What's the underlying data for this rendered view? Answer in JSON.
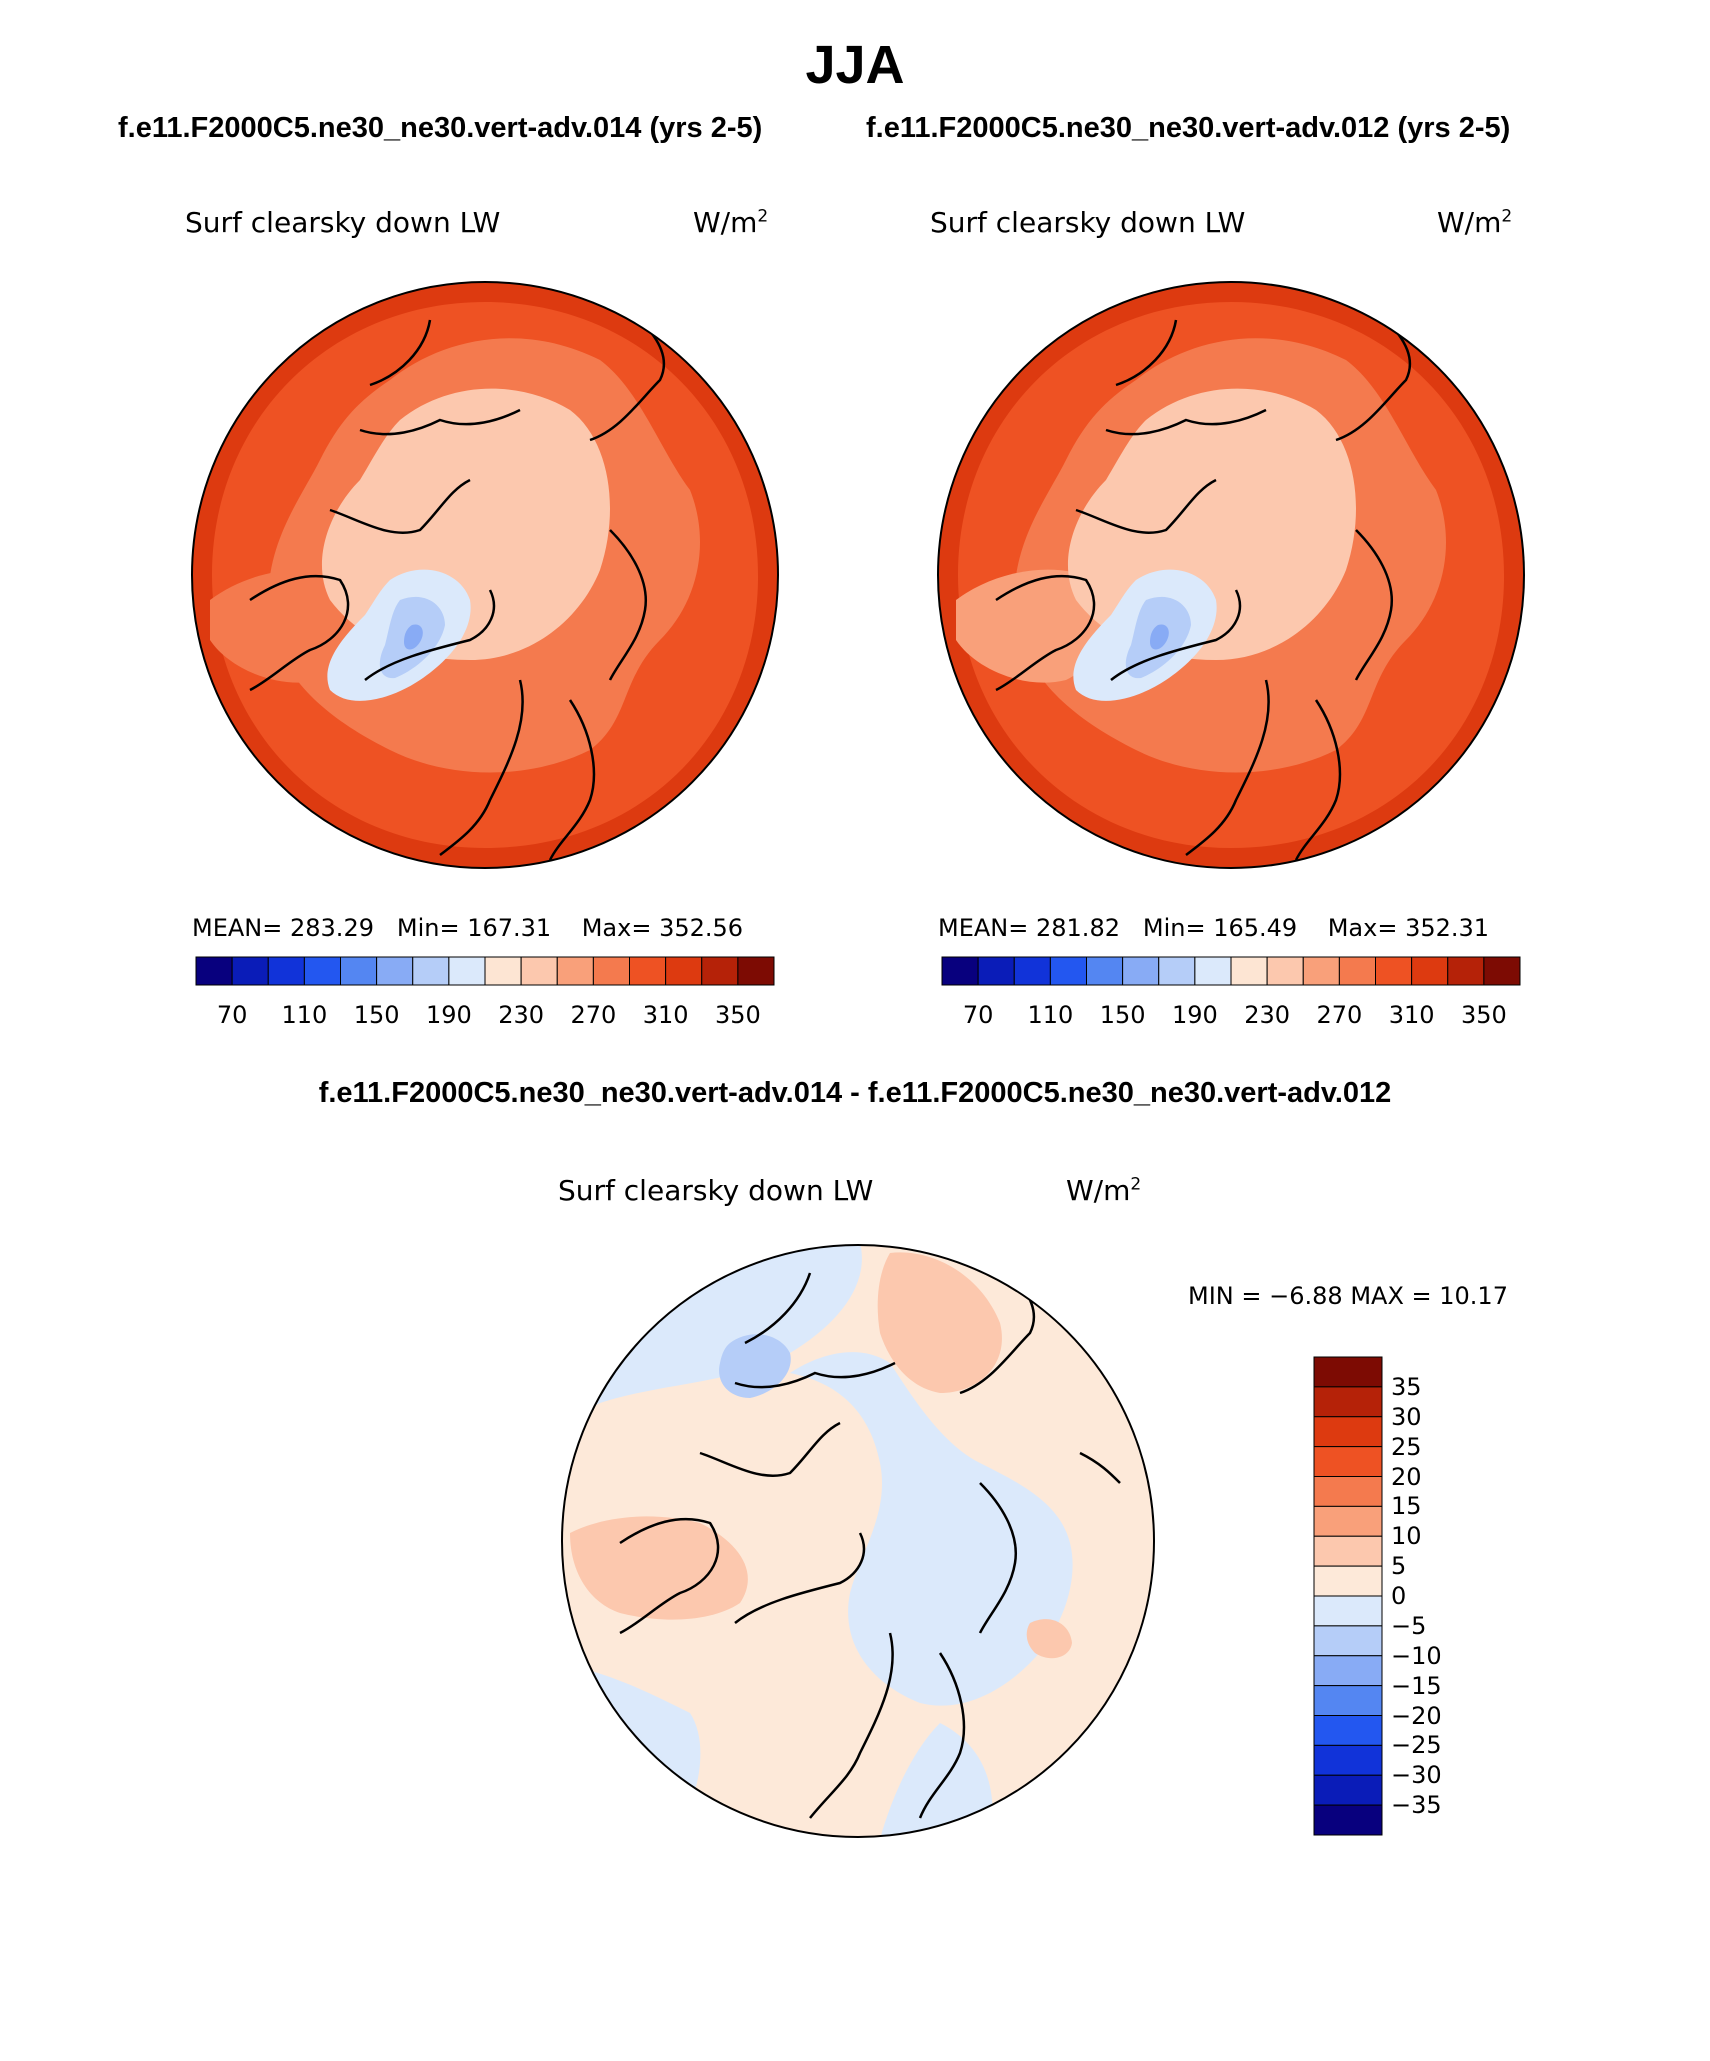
{
  "title": "JJA",
  "panels": [
    {
      "case": "f.e11.F2000C5.ne30_ne30.vert-adv.014 (yrs 2-5)",
      "variable": "Surf clearsky down LW",
      "units_base": "W/m",
      "units_exp": "2",
      "mean_label": "MEAN=",
      "mean": "283.29",
      "min_label": "Min=",
      "min": "167.31",
      "max_label": "Max=",
      "max": "352.56",
      "colorbar_ticks": [
        "70",
        "110",
        "150",
        "190",
        "230",
        "270",
        "310",
        "350"
      ]
    },
    {
      "case": "f.e11.F2000C5.ne30_ne30.vert-adv.012 (yrs 2-5)",
      "variable": "Surf clearsky down LW",
      "units_base": "W/m",
      "units_exp": "2",
      "mean_label": "MEAN=",
      "mean": "281.82",
      "min_label": "Min=",
      "min": "165.49",
      "max_label": "Max=",
      "max": "352.31",
      "colorbar_ticks": [
        "70",
        "110",
        "150",
        "190",
        "230",
        "270",
        "310",
        "350"
      ]
    }
  ],
  "difference": {
    "title": "f.e11.F2000C5.ne30_ne30.vert-adv.014 - f.e11.F2000C5.ne30_ne30.vert-adv.012",
    "variable": "Surf clearsky down LW",
    "units_base": "W/m",
    "units_exp": "2",
    "min_label": "MIN =",
    "min": "−6.88",
    "max_label": "MAX =",
    "max": "10.17",
    "colorbar_ticks": [
      "35",
      "30",
      "25",
      "20",
      "15",
      "10",
      "5",
      "0",
      "−5",
      "−10",
      "−15",
      "−20",
      "−25",
      "−30",
      "−35"
    ]
  },
  "colors": {
    "abs_scale": [
      "#08007e",
      "#0a1cb8",
      "#1133d9",
      "#2357f0",
      "#5486f2",
      "#88abf5",
      "#b5cdf8",
      "#dbe9fb",
      "#fde5d3",
      "#fcc8ae",
      "#f9a07a",
      "#f47a4e",
      "#ee5223",
      "#dd3a10",
      "#b52208",
      "#7d0b03"
    ],
    "diff_scale": [
      "#08007e",
      "#0a1cb8",
      "#1133d9",
      "#2357f0",
      "#5486f2",
      "#88abf5",
      "#b5cdf8",
      "#dbe9fb",
      "#fde9d9",
      "#fcc8ae",
      "#f9a07a",
      "#f47a4e",
      "#ee5223",
      "#dd3a10",
      "#b52208",
      "#7d0b03"
    ]
  }
}
